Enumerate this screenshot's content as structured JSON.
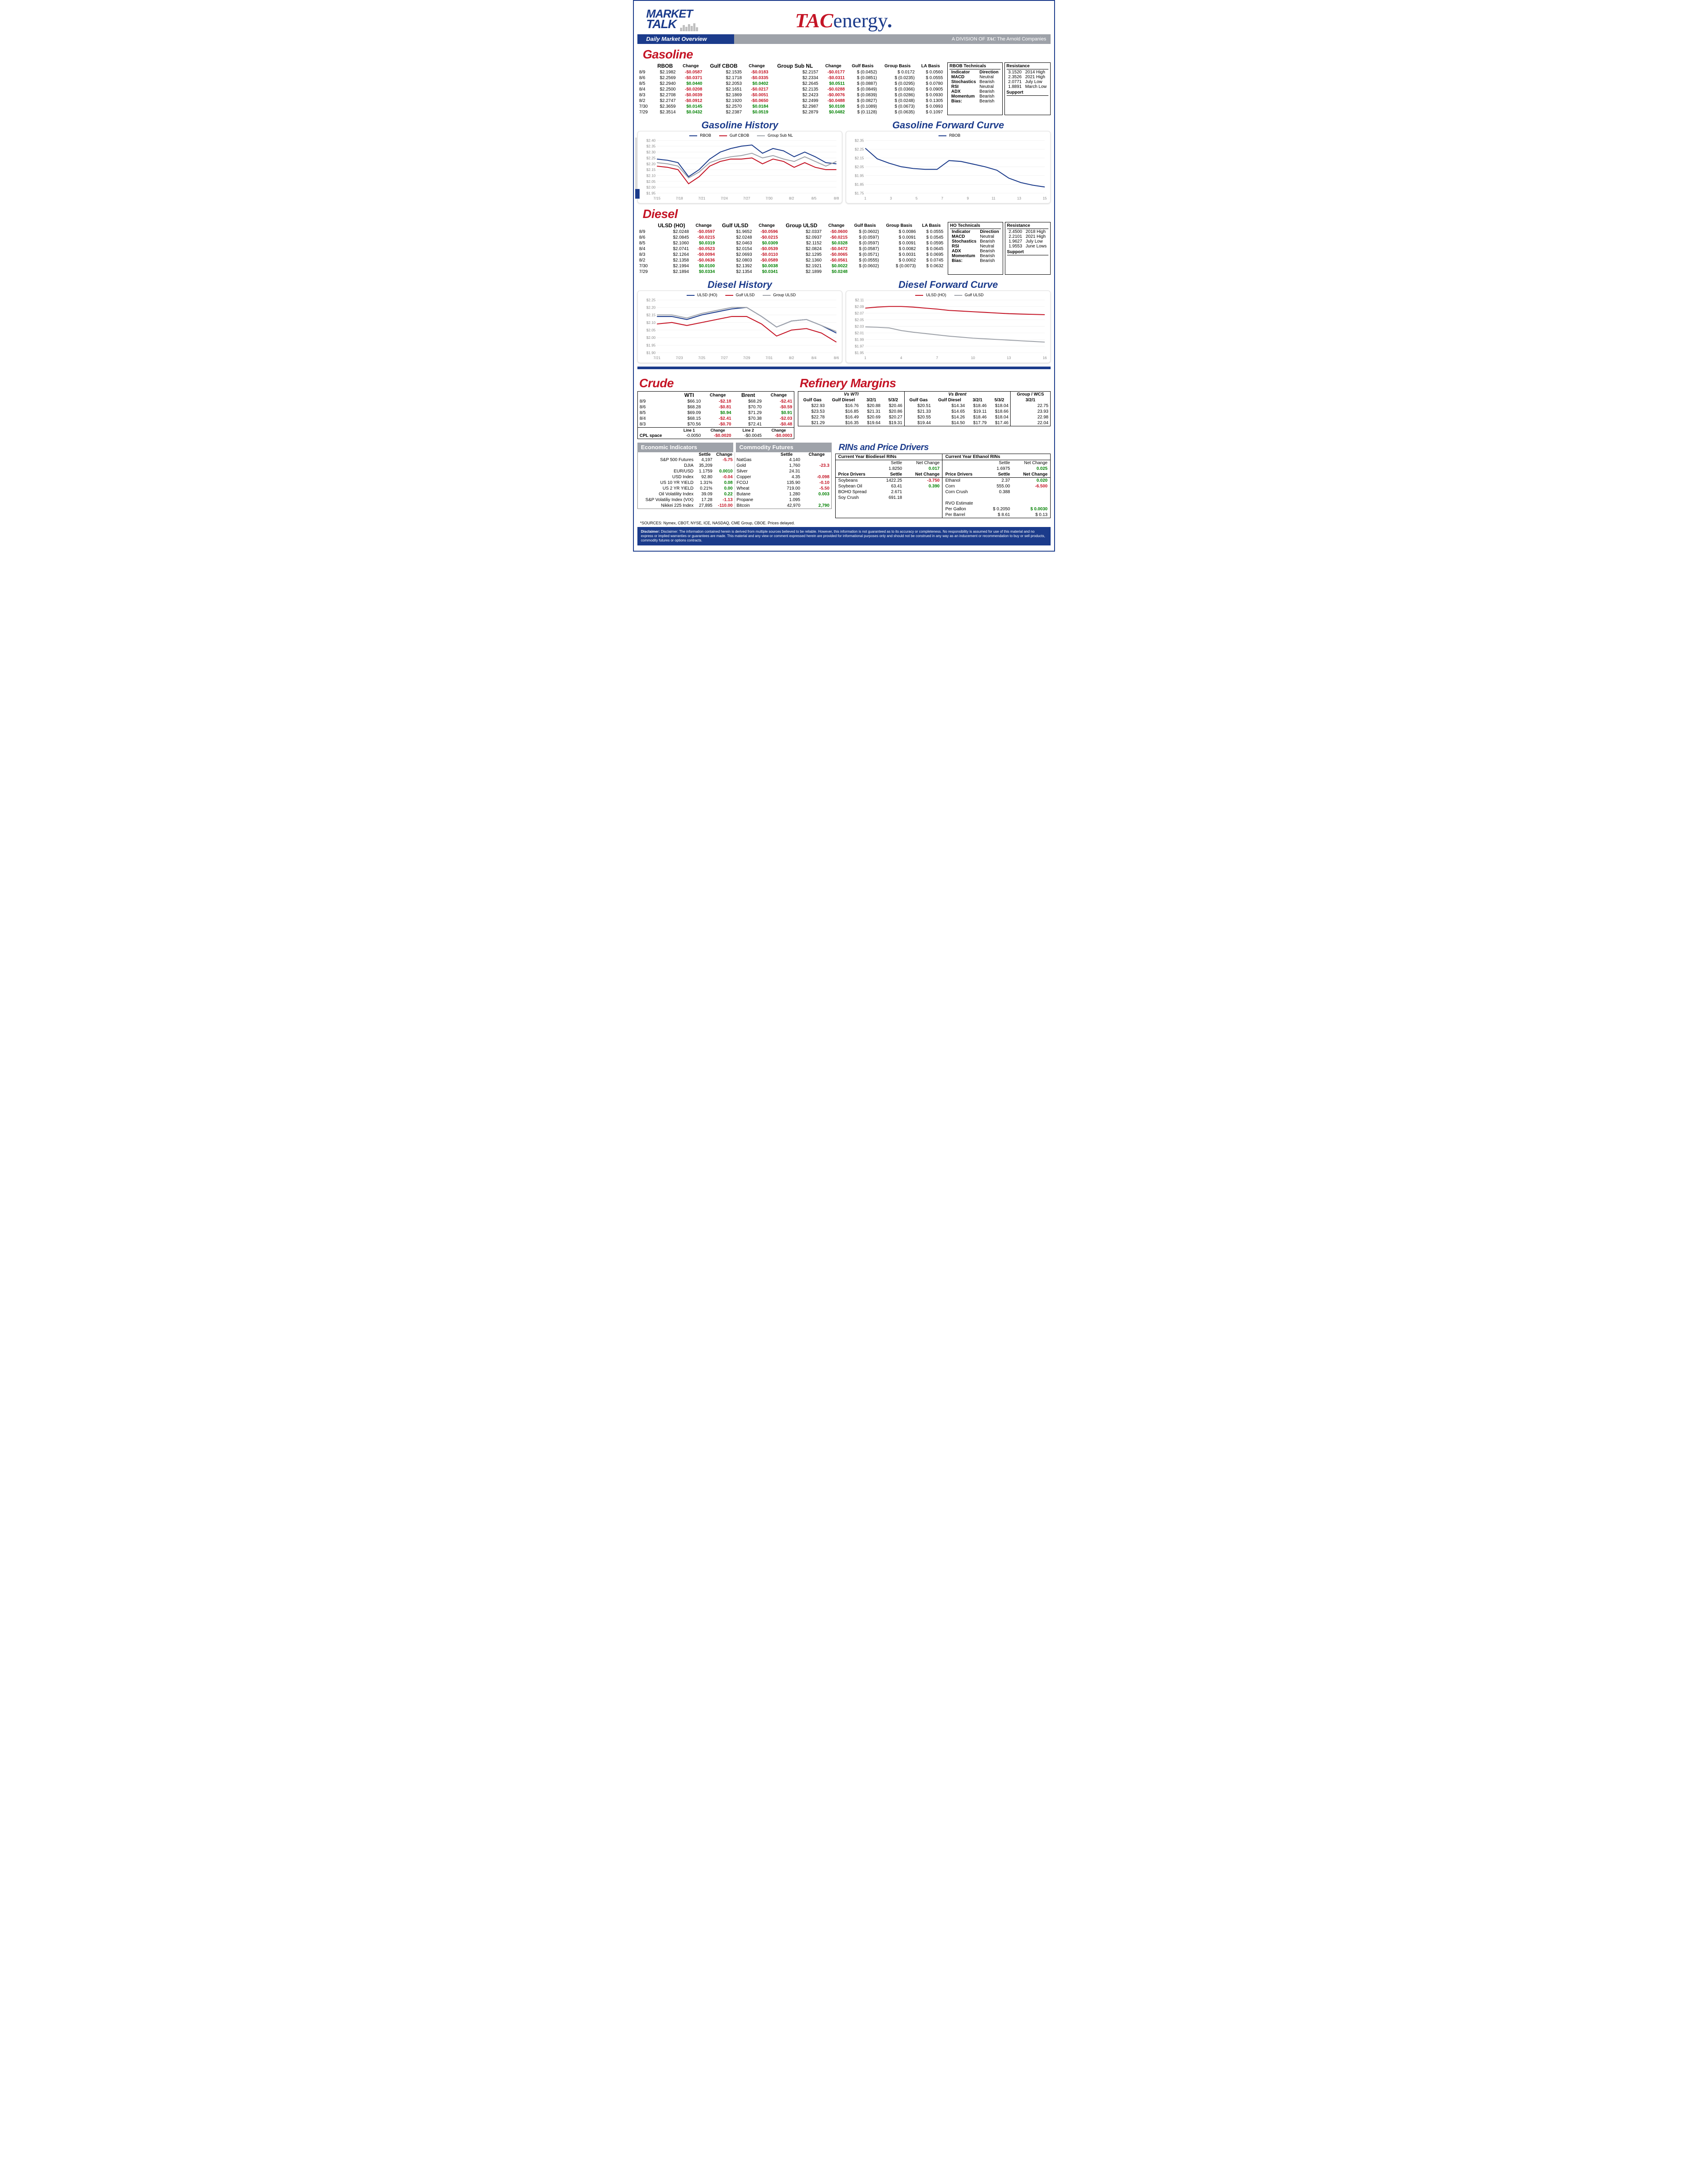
{
  "header": {
    "market": "MARKET",
    "talk": "TALK",
    "overview": "Daily Market Overview",
    "tac1": "TAC",
    "tac2": "energy",
    "division": "A DIVISION OF",
    "tac3": "TAC",
    "arnold": " The Arnold Companies"
  },
  "sections": {
    "gasoline": "Gasoline",
    "gas_hist": "Gasoline History",
    "gas_fwd": "Gasoline Forward Curve",
    "diesel": "Diesel",
    "dsl_hist": "Diesel History",
    "dsl_fwd": "Diesel Forward Curve",
    "crude": "Crude",
    "refinery": "Refinery Margins",
    "ei": "Economic Indicators",
    "cf": "Commodity Futures",
    "rins": "RINs and Price Drivers"
  },
  "gasoline": {
    "headers": [
      "",
      "RBOB",
      "Change",
      "Gulf CBOB",
      "Change",
      "Group Sub NL",
      "Change",
      "Gulf Basis",
      "Group Basis",
      "LA Basis"
    ],
    "rows": [
      [
        "8/9",
        "$2.1982",
        "-$0.0587",
        "$2.1535",
        "-$0.0183",
        "$2.2157",
        "-$0.0177",
        "$ (0.0452)",
        "$    0.0172",
        "$    0.0560"
      ],
      [
        "8/6",
        "$2.2569",
        "-$0.0371",
        "$2.1718",
        "-$0.0335",
        "$2.2334",
        "-$0.0311",
        "$ (0.0851)",
        "$   (0.0235)",
        "$    0.0555"
      ],
      [
        "8/5",
        "$2.2940",
        "$0.0440",
        "$2.2053",
        "$0.0402",
        "$2.2645",
        "$0.0511",
        "$ (0.0887)",
        "$   (0.0295)",
        "$    0.0780"
      ],
      [
        "8/4",
        "$2.2500",
        "-$0.0208",
        "$2.1651",
        "-$0.0217",
        "$2.2135",
        "-$0.0288",
        "$ (0.0849)",
        "$   (0.0366)",
        "$    0.0905"
      ],
      [
        "8/3",
        "$2.2708",
        "-$0.0039",
        "$2.1869",
        "-$0.0051",
        "$2.2423",
        "-$0.0076",
        "$ (0.0839)",
        "$   (0.0286)",
        "$    0.0930"
      ],
      [
        "8/2",
        "$2.2747",
        "-$0.0912",
        "$2.1920",
        "-$0.0650",
        "$2.2499",
        "-$0.0488",
        "$ (0.0827)",
        "$   (0.0248)",
        "$    0.1305"
      ],
      [
        "7/30",
        "$2.3659",
        "$0.0145",
        "$2.2570",
        "$0.0184",
        "$2.2987",
        "$0.0108",
        "$ (0.1089)",
        "$   (0.0673)",
        "$    0.0993"
      ],
      [
        "7/29",
        "$2.3514",
        "$0.0432",
        "$2.2387",
        "$0.0519",
        "$2.2879",
        "$0.0482",
        "$ (0.1128)",
        "$   (0.0635)",
        "$    0.1097"
      ]
    ],
    "neg_cols": {
      "1": [
        0,
        1,
        3,
        4,
        5
      ],
      "3": [
        0,
        1,
        3,
        4,
        5
      ],
      "5": [
        0,
        1,
        3,
        4,
        5
      ]
    },
    "tech_title": "RBOB Technicals",
    "tech_headers": [
      "Indicator",
      "Direction"
    ],
    "tech_rows": [
      [
        "MACD",
        "Neutral"
      ],
      [
        "Stochastics",
        "Bearish"
      ],
      [
        "RSI",
        "Neutral"
      ],
      [
        "ADX",
        "Bearish"
      ],
      [
        "Momentum",
        "Bearish"
      ],
      [
        "Bias:",
        "Bearish"
      ]
    ],
    "res_title": "Resistance",
    "res_rows": [
      [
        "3.1520",
        "2014 High"
      ],
      [
        "2.3526",
        "2021 High"
      ],
      [
        "2.0771",
        "July Low"
      ],
      [
        "1.8891",
        "March Low"
      ]
    ],
    "sup_title": "Support"
  },
  "diesel": {
    "headers": [
      "",
      "ULSD (HO)",
      "Change",
      "Gulf ULSD",
      "Change",
      "Group ULSD",
      "Change",
      "Gulf Basis",
      "Group Basis",
      "LA Basis"
    ],
    "rows": [
      [
        "8/9",
        "$2.0248",
        "-$0.0597",
        "$1.9652",
        "-$0.0596",
        "$2.0337",
        "-$0.0600",
        "$ (0.0602)",
        "$    0.0086",
        "$    0.0555"
      ],
      [
        "8/6",
        "$2.0845",
        "-$0.0215",
        "$2.0248",
        "-$0.0215",
        "$2.0937",
        "-$0.0215",
        "$ (0.0597)",
        "$    0.0091",
        "$    0.0545"
      ],
      [
        "8/5",
        "$2.1060",
        "$0.0319",
        "$2.0463",
        "$0.0309",
        "$2.1152",
        "$0.0328",
        "$ (0.0597)",
        "$    0.0091",
        "$    0.0595"
      ],
      [
        "8/4",
        "$2.0741",
        "-$0.0523",
        "$2.0154",
        "-$0.0539",
        "$2.0824",
        "-$0.0472",
        "$ (0.0587)",
        "$    0.0082",
        "$    0.0645"
      ],
      [
        "8/3",
        "$2.1264",
        "-$0.0094",
        "$2.0693",
        "-$0.0110",
        "$2.1295",
        "-$0.0065",
        "$ (0.0571)",
        "$    0.0031",
        "$    0.0695"
      ],
      [
        "8/2",
        "$2.1358",
        "-$0.0636",
        "$2.0803",
        "-$0.0589",
        "$2.1360",
        "-$0.0561",
        "$ (0.0555)",
        "$    0.0002",
        "$    0.0745"
      ],
      [
        "7/30",
        "$2.1994",
        "$0.0100",
        "$2.1392",
        "$0.0038",
        "$2.1921",
        "$0.0022",
        "$ (0.0602)",
        "$   (0.0073)",
        "$    0.0632"
      ],
      [
        "7/29",
        "$2.1894",
        "$0.0334",
        "$2.1354",
        "$0.0341",
        "$2.1899",
        "$0.0248",
        "",
        "",
        ""
      ]
    ],
    "tech_title": "HO Technicals",
    "tech_rows": [
      [
        "MACD",
        "Neutral"
      ],
      [
        "Stochastics",
        "Bearish"
      ],
      [
        "RSI",
        "Neutral"
      ],
      [
        "ADX",
        "Bearish"
      ],
      [
        "Momentum",
        "Bearish"
      ],
      [
        "Bias:",
        "Bearish"
      ]
    ],
    "res_rows": [
      [
        "2.4500",
        "2018 High"
      ],
      [
        "2.2101",
        "2021 High"
      ],
      [
        "1.9627",
        "July Low"
      ],
      [
        "1.9553",
        "June Lows"
      ]
    ]
  },
  "crude": {
    "headers": [
      "",
      "WTI",
      "Change",
      "Brent",
      "Change"
    ],
    "rows": [
      [
        "8/9",
        "$66.10",
        "-$2.18",
        "$68.29",
        "-$2.41"
      ],
      [
        "8/6",
        "$68.28",
        "-$0.81",
        "$70.70",
        "-$0.59"
      ],
      [
        "8/5",
        "$69.09",
        "$0.94",
        "$71.29",
        "$0.91"
      ],
      [
        "8/4",
        "$68.15",
        "-$2.41",
        "$70.38",
        "-$2.03"
      ],
      [
        "8/3",
        "$70.56",
        "-$0.70",
        "$72.41",
        "-$0.48"
      ]
    ],
    "cpl": [
      "CPL space",
      "Line 1",
      "Change",
      "Line 2",
      "Change"
    ],
    "cpl_vals": [
      "-0.0050",
      "-$0.0020",
      "-$0.0045",
      "-$0.0003"
    ]
  },
  "refinery": {
    "wti_hdr": "Vs WTI",
    "brent_hdr": "Vs Brent",
    "grp_hdr": "Group / WCS",
    "cols": [
      "Gulf Gas",
      "Gulf Diesel",
      "3/2/1",
      "5/3/2",
      "Gulf Gas",
      "Gulf Diesel",
      "3/2/1",
      "5/3/2",
      "3/2/1"
    ],
    "rows": [
      [
        "$22.93",
        "$16.76",
        "$20.88",
        "$20.46",
        "$20.51",
        "$14.34",
        "$18.46",
        "$18.04",
        "22.75"
      ],
      [
        "$23.53",
        "$16.85",
        "$21.31",
        "$20.86",
        "$21.33",
        "$14.65",
        "$19.11",
        "$18.66",
        "23.93"
      ],
      [
        "$22.78",
        "$16.49",
        "$20.69",
        "$20.27",
        "$20.55",
        "$14.26",
        "$18.46",
        "$18.04",
        "22.98"
      ],
      [
        "$21.29",
        "$16.35",
        "$19.64",
        "$19.31",
        "$19.44",
        "$14.50",
        "$17.79",
        "$17.46",
        "22.04"
      ]
    ]
  },
  "ei": {
    "hdr": [
      "",
      "Settle",
      "Change"
    ],
    "rows": [
      [
        "S&P 500 Futures",
        "4,197",
        "-5.75",
        "neg"
      ],
      [
        "DJIA",
        "35,209",
        "",
        ""
      ],
      [
        "EUR/USD",
        "1.1759",
        "0.0010",
        "pos"
      ],
      [
        "USD Index",
        "92.80",
        "-0.04",
        "neg"
      ],
      [
        "US 10 YR YIELD",
        "1.31%",
        "0.08",
        "pos"
      ],
      [
        "US 2 YR YIELD",
        "0.21%",
        "0.00",
        "pos"
      ],
      [
        "Oil Volatility Index",
        "39.09",
        "0.22",
        "pos"
      ],
      [
        "S&P Volatiliy Index (VIX)",
        "17.28",
        "-1.13",
        "neg"
      ],
      [
        "Nikkei 225 Index",
        "27,895",
        "-110.00",
        "neg"
      ]
    ]
  },
  "cf": {
    "hdr": [
      "",
      "Settle",
      "Change"
    ],
    "rows": [
      [
        "NatGas",
        "4.140",
        "",
        ""
      ],
      [
        "Gold",
        "1,760",
        "-23.3",
        "neg"
      ],
      [
        "Silver",
        "24.31",
        "",
        ""
      ],
      [
        "Copper",
        "4.35",
        "-0.098",
        "neg"
      ],
      [
        "FCOJ",
        "135.90",
        "-0.10",
        "neg"
      ],
      [
        "Wheat",
        "719.00",
        "-5.50",
        "neg"
      ],
      [
        "Butane",
        "1.280",
        "0.003",
        "pos"
      ],
      [
        "Propane",
        "1.095",
        "",
        ""
      ],
      [
        "Bitcoin",
        "42,970",
        "2,790",
        "pos"
      ]
    ]
  },
  "rins": {
    "bio_hdr": "Current Year Biodiesel RINs",
    "eth_hdr": "Current Year Ethanol RINs",
    "bio": [
      "Settle",
      "1.8250",
      "Net Change",
      "0.017"
    ],
    "eth": [
      "Settle",
      "1.6975",
      "Net Change",
      "0.025"
    ],
    "pd_hdr": "Price Drivers",
    "left_rows": [
      [
        "Soybeans",
        "1422.25",
        "-3.750",
        "neg"
      ],
      [
        "Soybean Oil",
        "63.41",
        "0.390",
        "pos"
      ],
      [
        "BOHO Spread",
        "2.671",
        "",
        ""
      ],
      [
        "Soy Crush",
        "691.18",
        "",
        ""
      ]
    ],
    "right_rows": [
      [
        "Ethanol",
        "2.37",
        "0.020",
        "pos"
      ],
      [
        "Corn",
        "555.00",
        "-6.500",
        "neg"
      ],
      [
        "Corn Crush",
        "0.388",
        "",
        ""
      ]
    ],
    "rvo": {
      "label": "RVO Estimate",
      "pg": "Per Gallon",
      "pg_v": "$    0.2050",
      "pg_c": "$       0.0030",
      "pb": "Per Barrel",
      "pb_v": "$       8.61",
      "pb_c": "$          0.13"
    }
  },
  "charts": {
    "gas_hist": {
      "legend": [
        "RBOB",
        "Gulf CBOB",
        "Group Sub NL"
      ],
      "colors": [
        "#1b3b8b",
        "#c41425",
        "#9ea2a9"
      ],
      "xlabels": [
        "7/15",
        "7/18",
        "7/21",
        "7/24",
        "7/27",
        "7/30",
        "8/2",
        "8/5",
        "8/8"
      ],
      "ylabels": [
        "$1.95",
        "$2.00",
        "$2.05",
        "$2.10",
        "$2.15",
        "$2.20",
        "$2.25",
        "$2.30",
        "$2.35",
        "$2.40"
      ],
      "ymin": 1.95,
      "ymax": 2.4,
      "series": [
        [
          2.24,
          2.23,
          2.21,
          2.09,
          2.15,
          2.24,
          2.3,
          2.33,
          2.35,
          2.36,
          2.29,
          2.33,
          2.31,
          2.26,
          2.3,
          2.26,
          2.21,
          2.2
        ],
        [
          2.18,
          2.17,
          2.15,
          2.03,
          2.09,
          2.18,
          2.22,
          2.24,
          2.24,
          2.25,
          2.2,
          2.24,
          2.22,
          2.17,
          2.21,
          2.17,
          2.15,
          2.15
        ],
        [
          2.21,
          2.2,
          2.18,
          2.08,
          2.13,
          2.21,
          2.24,
          2.26,
          2.27,
          2.29,
          2.25,
          2.27,
          2.24,
          2.22,
          2.26,
          2.22,
          2.18,
          2.22
        ]
      ]
    },
    "gas_fwd": {
      "legend": [
        "RBOB"
      ],
      "colors": [
        "#1b3b8b"
      ],
      "xlabels": [
        "1",
        "3",
        "5",
        "7",
        "9",
        "11",
        "13",
        "15"
      ],
      "ylabels": [
        "$1.75",
        "$1.85",
        "$1.95",
        "$2.05",
        "$2.15",
        "$2.25",
        "$2.35"
      ],
      "ymin": 1.75,
      "ymax": 2.35,
      "series": [
        [
          2.26,
          2.14,
          2.09,
          2.05,
          2.03,
          2.02,
          2.02,
          2.12,
          2.11,
          2.08,
          2.05,
          2.01,
          1.92,
          1.87,
          1.84,
          1.82
        ]
      ]
    },
    "dsl_hist": {
      "legend": [
        "ULSD (HO)",
        "Gulf ULSD",
        "Group ULSD"
      ],
      "colors": [
        "#1b3b8b",
        "#c41425",
        "#9ea2a9"
      ],
      "xlabels": [
        "7/21",
        "7/23",
        "7/25",
        "7/27",
        "7/29",
        "7/31",
        "8/2",
        "8/4",
        "8/6"
      ],
      "ylabels": [
        "$1.90",
        "$1.95",
        "$2.00",
        "$2.05",
        "$2.10",
        "$2.15",
        "$2.20",
        "$2.25"
      ],
      "ymin": 1.9,
      "ymax": 2.25,
      "series": [
        [
          2.14,
          2.14,
          2.12,
          2.15,
          2.17,
          2.19,
          2.2,
          2.14,
          2.07,
          2.11,
          2.12,
          2.08,
          2.03
        ],
        [
          2.09,
          2.1,
          2.08,
          2.1,
          2.12,
          2.14,
          2.14,
          2.09,
          2.01,
          2.05,
          2.06,
          2.03,
          1.97
        ],
        [
          2.15,
          2.15,
          2.13,
          2.16,
          2.18,
          2.2,
          2.2,
          2.14,
          2.07,
          2.11,
          2.12,
          2.08,
          2.04
        ]
      ]
    },
    "dsl_fwd": {
      "legend": [
        "ULSD (HO)",
        "Gulf ULSD"
      ],
      "colors": [
        "#c41425",
        "#9ea2a9"
      ],
      "xlabels": [
        "1",
        "4",
        "7",
        "10",
        "13",
        "16"
      ],
      "ylabels": [
        "$1.95",
        "$1.97",
        "$1.99",
        "$2.01",
        "$2.03",
        "$2.05",
        "$2.07",
        "$2.09",
        "$2.11"
      ],
      "ymin": 1.95,
      "ymax": 2.11,
      "series": [
        [
          2.085,
          2.088,
          2.09,
          2.09,
          2.088,
          2.085,
          2.082,
          2.078,
          2.076,
          2.074,
          2.072,
          2.07,
          2.068,
          2.067,
          2.066,
          2.065
        ],
        [
          2.028,
          2.027,
          2.025,
          2.017,
          2.012,
          2.008,
          2.004,
          2.0,
          1.997,
          1.994,
          1.992,
          1.99,
          1.988,
          1.986,
          1.984,
          1.982
        ]
      ]
    }
  },
  "sources": "*SOURCES: Nymex, CBOT, NYSE, ICE, NASDAQ, CME Group, CBOE.    Prices delayed.",
  "disclaimer": "Disclaimer: The information contained herein is derived from multiple sources believed to be reliable.  However, this information is not guaranteed as to its accuracy or completeness. No responsibility is assumed for use of this material and no express or implied warranties or guarantees are made. This material and any view or comment expressed herein are provided for informational purposes only and should not be construed in any way as an inducement or recommendation to buy or sell products, commodity futures or options contracts."
}
